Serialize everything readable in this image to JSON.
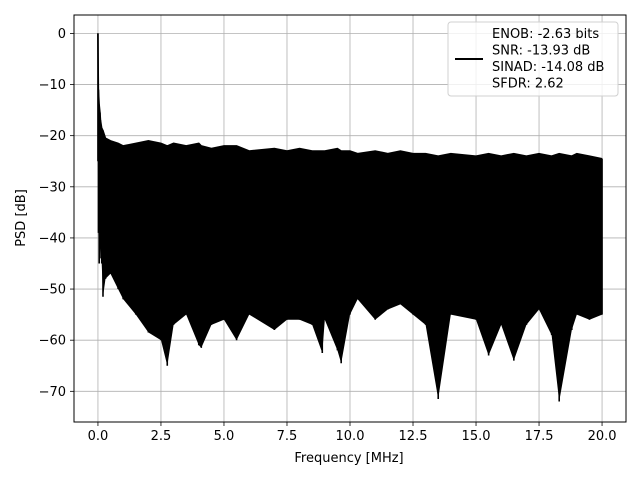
{
  "chart_data": {
    "type": "line",
    "xlabel": "Frequency [MHz]",
    "ylabel": "PSD [dB]",
    "xlim": [
      -0.95,
      20.95
    ],
    "ylim": [
      -76.0,
      3.6
    ],
    "xticks": [
      0.0,
      2.5,
      5.0,
      7.5,
      10.0,
      12.5,
      15.0,
      17.5,
      20.0
    ],
    "xtick_labels": [
      "0.0",
      "2.5",
      "5.0",
      "7.5",
      "10.0",
      "12.5",
      "15.0",
      "17.5",
      "20.0"
    ],
    "yticks": [
      0,
      -10,
      -20,
      -30,
      -40,
      -50,
      -60,
      -70
    ],
    "ytick_labels": [
      "0",
      "−10",
      "−20",
      "−30",
      "−40",
      "−50",
      "−60",
      "−70"
    ],
    "grid": true,
    "legend_position": "top-right",
    "line_color": "#000000",
    "series": [
      {
        "name": "ENOB: -2.63 bits\nSNR: -13.93 dB\nSINAD: -14.08 dB\nSFDR: 2.62",
        "x": [
          0.0,
          0.02,
          0.05,
          0.08,
          0.1,
          0.15,
          0.2,
          0.3,
          0.5,
          0.8,
          1.0,
          1.5,
          2.0,
          2.5,
          2.75,
          3.0,
          3.5,
          4.0,
          4.1,
          4.5,
          5.0,
          5.5,
          6.0,
          7.0,
          7.5,
          8.0,
          8.5,
          8.9,
          9.0,
          9.5,
          9.65,
          10.0,
          10.3,
          11.0,
          11.5,
          12.0,
          12.5,
          13.0,
          13.5,
          14.0,
          15.0,
          15.5,
          16.0,
          16.5,
          17.0,
          17.5,
          18.0,
          18.3,
          18.8,
          19.0,
          19.5,
          20.0
        ],
        "y": [
          0.0,
          -11.0,
          -14.0,
          -15.5,
          -17.0,
          -18.5,
          -19.0,
          -20.5,
          -21.0,
          -21.5,
          -22.0,
          -21.5,
          -21.0,
          -21.5,
          -22.0,
          -21.5,
          -22.0,
          -21.5,
          -22.0,
          -22.5,
          -22.0,
          -22.0,
          -23.0,
          -22.5,
          -23.0,
          -22.5,
          -23.0,
          -23.0,
          -23.0,
          -22.5,
          -23.0,
          -23.0,
          -23.5,
          -23.0,
          -23.5,
          -23.0,
          -23.5,
          -23.5,
          -24.0,
          -23.5,
          -24.0,
          -23.5,
          -24.0,
          -23.5,
          -24.0,
          -23.5,
          -24.0,
          -23.5,
          -24.0,
          -23.5,
          -24.0,
          -24.5
        ],
        "y_min": [
          -25.0,
          -39.0,
          -45.0,
          -44.0,
          -42.0,
          -45.0,
          -51.5,
          -48.0,
          -47.0,
          -50.0,
          -52.0,
          -55.0,
          -58.5,
          -60.0,
          -65.0,
          -57.0,
          -55.0,
          -61.0,
          -61.5,
          -57.0,
          -56.0,
          -60.0,
          -55.0,
          -58.0,
          -56.0,
          -56.0,
          -57.0,
          -62.5,
          -56.0,
          -62.0,
          -64.5,
          -55.0,
          -52.0,
          -56.0,
          -54.0,
          -53.0,
          -55.0,
          -57.0,
          -71.5,
          -55.0,
          -56.0,
          -63.0,
          -57.0,
          -64.0,
          -57.0,
          -54.0,
          -59.0,
          -72.0,
          -58.0,
          -55.0,
          -56.0,
          -55.0
        ]
      }
    ]
  }
}
